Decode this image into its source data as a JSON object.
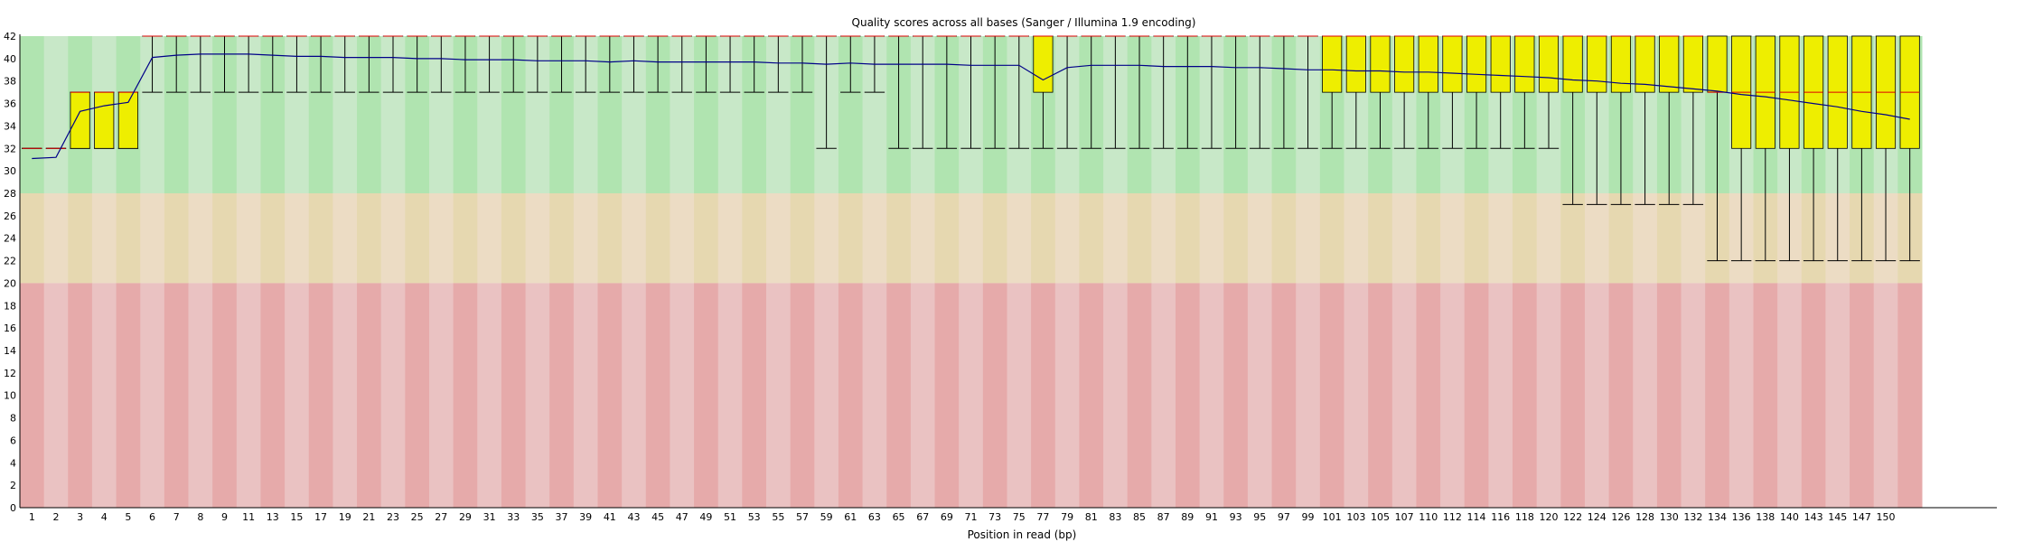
{
  "chart_data": {
    "type": "box",
    "title": "Quality scores across all bases (Sanger / Illumina 1.9 encoding)",
    "xlabel": "Position in read (bp)",
    "ylabel": "",
    "ylim": [
      0,
      42
    ],
    "yticks": [
      0,
      2,
      4,
      6,
      8,
      10,
      12,
      14,
      16,
      18,
      20,
      22,
      24,
      26,
      28,
      30,
      32,
      34,
      36,
      38,
      40,
      42
    ],
    "zones": [
      {
        "name": "good",
        "from": 28,
        "to": 42,
        "colors": [
          "#b0e4b0",
          "#c8e8c8"
        ]
      },
      {
        "name": "reasonable",
        "from": 20,
        "to": 28,
        "colors": [
          "#e6d8b0",
          "#ecdcc4"
        ]
      },
      {
        "name": "poor",
        "from": 0,
        "to": 20,
        "colors": [
          "#e6aaaa",
          "#eac2c2"
        ]
      }
    ],
    "colors": {
      "box": "#eeee00",
      "mean": "#000088",
      "median": "#dd0000",
      "whisker": "#000000"
    },
    "xtick_labels": [
      "1",
      "2",
      "3",
      "4",
      "5",
      "6",
      "7",
      "8",
      "9",
      "11",
      "13",
      "15",
      "17",
      "19",
      "21",
      "23",
      "25",
      "27",
      "29",
      "31",
      "33",
      "35",
      "37",
      "39",
      "41",
      "43",
      "45",
      "47",
      "49",
      "51",
      "53",
      "55",
      "57",
      "59",
      "61",
      "63",
      "65",
      "67",
      "69",
      "71",
      "73",
      "75",
      "77",
      "79",
      "81",
      "83",
      "85",
      "87",
      "89",
      "91",
      "93",
      "95",
      "97",
      "99",
      "101",
      "103",
      "105",
      "107",
      "110",
      "112",
      "114",
      "116",
      "118",
      "120",
      "122",
      "124",
      "126",
      "128",
      "130",
      "132",
      "134",
      "136",
      "138",
      "140",
      "143",
      "145",
      "147",
      "150"
    ],
    "groups": [
      {
        "range": "1",
        "box": [
          32,
          32,
          32
        ],
        "whisker": [
          32,
          32
        ],
        "mean": 31.1
      },
      {
        "range": "2",
        "box": [
          32,
          32,
          32
        ],
        "whisker": [
          32,
          32
        ],
        "mean": 31.2
      },
      {
        "range": "3",
        "box": [
          32,
          37,
          37
        ],
        "whisker": [
          32,
          37
        ],
        "mean": 35.3
      },
      {
        "range": "4",
        "box": [
          32,
          37,
          37
        ],
        "whisker": [
          32,
          37
        ],
        "mean": 35.8
      },
      {
        "range": "5",
        "box": [
          32,
          37,
          37
        ],
        "whisker": [
          32,
          37
        ],
        "mean": 36.1
      },
      {
        "range": "6",
        "box": [
          42,
          42,
          42
        ],
        "whisker": [
          37,
          42
        ],
        "mean": 40.1
      },
      {
        "range": "7",
        "box": [
          42,
          42,
          42
        ],
        "whisker": [
          37,
          42
        ],
        "mean": 40.3
      },
      {
        "range": "8",
        "box": [
          42,
          42,
          42
        ],
        "whisker": [
          37,
          42
        ],
        "mean": 40.4
      },
      {
        "range": "9",
        "box": [
          42,
          42,
          42
        ],
        "whisker": [
          37,
          42
        ],
        "mean": 40.4
      },
      {
        "range": "10-11",
        "box": [
          42,
          42,
          42
        ],
        "whisker": [
          37,
          42
        ],
        "mean": 40.4
      },
      {
        "range": "12-13",
        "box": [
          42,
          42,
          42
        ],
        "whisker": [
          37,
          42
        ],
        "mean": 40.3
      },
      {
        "range": "14-15",
        "box": [
          42,
          42,
          42
        ],
        "whisker": [
          37,
          42
        ],
        "mean": 40.2
      },
      {
        "range": "16-17",
        "box": [
          42,
          42,
          42
        ],
        "whisker": [
          37,
          42
        ],
        "mean": 40.2
      },
      {
        "range": "18-19",
        "box": [
          42,
          42,
          42
        ],
        "whisker": [
          37,
          42
        ],
        "mean": 40.1
      },
      {
        "range": "20-21",
        "box": [
          42,
          42,
          42
        ],
        "whisker": [
          37,
          42
        ],
        "mean": 40.1
      },
      {
        "range": "22-23",
        "box": [
          42,
          42,
          42
        ],
        "whisker": [
          37,
          42
        ],
        "mean": 40.1
      },
      {
        "range": "24-25",
        "box": [
          42,
          42,
          42
        ],
        "whisker": [
          37,
          42
        ],
        "mean": 40.0
      },
      {
        "range": "26-27",
        "box": [
          42,
          42,
          42
        ],
        "whisker": [
          37,
          42
        ],
        "mean": 40.0
      },
      {
        "range": "28-29",
        "box": [
          42,
          42,
          42
        ],
        "whisker": [
          37,
          42
        ],
        "mean": 39.9
      },
      {
        "range": "30-31",
        "box": [
          42,
          42,
          42
        ],
        "whisker": [
          37,
          42
        ],
        "mean": 39.9
      },
      {
        "range": "32-33",
        "box": [
          42,
          42,
          42
        ],
        "whisker": [
          37,
          42
        ],
        "mean": 39.9
      },
      {
        "range": "34-35",
        "box": [
          42,
          42,
          42
        ],
        "whisker": [
          37,
          42
        ],
        "mean": 39.8
      },
      {
        "range": "36-37",
        "box": [
          42,
          42,
          42
        ],
        "whisker": [
          37,
          42
        ],
        "mean": 39.8
      },
      {
        "range": "38-39",
        "box": [
          42,
          42,
          42
        ],
        "whisker": [
          37,
          42
        ],
        "mean": 39.8
      },
      {
        "range": "40-41",
        "box": [
          42,
          42,
          42
        ],
        "whisker": [
          37,
          42
        ],
        "mean": 39.7
      },
      {
        "range": "42-43",
        "box": [
          42,
          42,
          42
        ],
        "whisker": [
          37,
          42
        ],
        "mean": 39.8
      },
      {
        "range": "44-45",
        "box": [
          42,
          42,
          42
        ],
        "whisker": [
          37,
          42
        ],
        "mean": 39.7
      },
      {
        "range": "46-47",
        "box": [
          42,
          42,
          42
        ],
        "whisker": [
          37,
          42
        ],
        "mean": 39.7
      },
      {
        "range": "48-49",
        "box": [
          42,
          42,
          42
        ],
        "whisker": [
          37,
          42
        ],
        "mean": 39.7
      },
      {
        "range": "50-51",
        "box": [
          42,
          42,
          42
        ],
        "whisker": [
          37,
          42
        ],
        "mean": 39.7
      },
      {
        "range": "52-53",
        "box": [
          42,
          42,
          42
        ],
        "whisker": [
          37,
          42
        ],
        "mean": 39.7
      },
      {
        "range": "54-55",
        "box": [
          42,
          42,
          42
        ],
        "whisker": [
          37,
          42
        ],
        "mean": 39.6
      },
      {
        "range": "56-57",
        "box": [
          42,
          42,
          42
        ],
        "whisker": [
          37,
          42
        ],
        "mean": 39.6
      },
      {
        "range": "58-59",
        "box": [
          42,
          42,
          42
        ],
        "whisker": [
          32,
          42
        ],
        "mean": 39.5
      },
      {
        "range": "60-61",
        "box": [
          42,
          42,
          42
        ],
        "whisker": [
          37,
          42
        ],
        "mean": 39.6
      },
      {
        "range": "62-63",
        "box": [
          42,
          42,
          42
        ],
        "whisker": [
          37,
          42
        ],
        "mean": 39.5
      },
      {
        "range": "64-65",
        "box": [
          42,
          42,
          42
        ],
        "whisker": [
          32,
          42
        ],
        "mean": 39.5
      },
      {
        "range": "66-67",
        "box": [
          42,
          42,
          42
        ],
        "whisker": [
          32,
          42
        ],
        "mean": 39.5
      },
      {
        "range": "68-69",
        "box": [
          42,
          42,
          42
        ],
        "whisker": [
          32,
          42
        ],
        "mean": 39.5
      },
      {
        "range": "70-71",
        "box": [
          42,
          42,
          42
        ],
        "whisker": [
          32,
          42
        ],
        "mean": 39.4
      },
      {
        "range": "72-73",
        "box": [
          42,
          42,
          42
        ],
        "whisker": [
          32,
          42
        ],
        "mean": 39.4
      },
      {
        "range": "74-75",
        "box": [
          42,
          42,
          42
        ],
        "whisker": [
          32,
          42
        ],
        "mean": 39.4
      },
      {
        "range": "76-77",
        "box": [
          37,
          42,
          42
        ],
        "whisker": [
          32,
          42
        ],
        "mean": 38.1
      },
      {
        "range": "78-79",
        "box": [
          42,
          42,
          42
        ],
        "whisker": [
          32,
          42
        ],
        "mean": 39.2
      },
      {
        "range": "80-81",
        "box": [
          42,
          42,
          42
        ],
        "whisker": [
          32,
          42
        ],
        "mean": 39.4
      },
      {
        "range": "82-83",
        "box": [
          42,
          42,
          42
        ],
        "whisker": [
          32,
          42
        ],
        "mean": 39.4
      },
      {
        "range": "84-85",
        "box": [
          42,
          42,
          42
        ],
        "whisker": [
          32,
          42
        ],
        "mean": 39.4
      },
      {
        "range": "86-87",
        "box": [
          42,
          42,
          42
        ],
        "whisker": [
          32,
          42
        ],
        "mean": 39.3
      },
      {
        "range": "88-89",
        "box": [
          42,
          42,
          42
        ],
        "whisker": [
          32,
          42
        ],
        "mean": 39.3
      },
      {
        "range": "90-91",
        "box": [
          42,
          42,
          42
        ],
        "whisker": [
          32,
          42
        ],
        "mean": 39.3
      },
      {
        "range": "92-93",
        "box": [
          42,
          42,
          42
        ],
        "whisker": [
          32,
          42
        ],
        "mean": 39.2
      },
      {
        "range": "94-95",
        "box": [
          42,
          42,
          42
        ],
        "whisker": [
          32,
          42
        ],
        "mean": 39.2
      },
      {
        "range": "96-97",
        "box": [
          42,
          42,
          42
        ],
        "whisker": [
          32,
          42
        ],
        "mean": 39.1
      },
      {
        "range": "98-99",
        "box": [
          42,
          42,
          42
        ],
        "whisker": [
          32,
          42
        ],
        "mean": 39.0
      },
      {
        "range": "100-101",
        "box": [
          37,
          42,
          42
        ],
        "whisker": [
          32,
          42
        ],
        "mean": 39.0
      },
      {
        "range": "102-103",
        "box": [
          37,
          42,
          42
        ],
        "whisker": [
          32,
          42
        ],
        "mean": 38.9
      },
      {
        "range": "104-105",
        "box": [
          37,
          42,
          42
        ],
        "whisker": [
          32,
          42
        ],
        "mean": 38.9
      },
      {
        "range": "106-107",
        "box": [
          37,
          42,
          42
        ],
        "whisker": [
          32,
          42
        ],
        "mean": 38.8
      },
      {
        "range": "108-109",
        "box": [
          37,
          42,
          42
        ],
        "whisker": [
          32,
          42
        ],
        "mean": 38.8
      },
      {
        "range": "110-111",
        "box": [
          37,
          42,
          42
        ],
        "whisker": [
          32,
          42
        ],
        "mean": 38.7
      },
      {
        "range": "112-113",
        "box": [
          37,
          42,
          42
        ],
        "whisker": [
          32,
          42
        ],
        "mean": 38.6
      },
      {
        "range": "114-115",
        "box": [
          37,
          42,
          42
        ],
        "whisker": [
          32,
          42
        ],
        "mean": 38.5
      },
      {
        "range": "116-117",
        "box": [
          37,
          42,
          42
        ],
        "whisker": [
          32,
          42
        ],
        "mean": 38.4
      },
      {
        "range": "118-119",
        "box": [
          37,
          42,
          42
        ],
        "whisker": [
          32,
          42
        ],
        "mean": 38.3
      },
      {
        "range": "120-121",
        "box": [
          37,
          42,
          42
        ],
        "whisker": [
          27,
          42
        ],
        "mean": 38.1
      },
      {
        "range": "122-123",
        "box": [
          37,
          42,
          42
        ],
        "whisker": [
          27,
          42
        ],
        "mean": 38.0
      },
      {
        "range": "124-125",
        "box": [
          37,
          42,
          42
        ],
        "whisker": [
          27,
          42
        ],
        "mean": 37.8
      },
      {
        "range": "126-127",
        "box": [
          37,
          42,
          42
        ],
        "whisker": [
          27,
          42
        ],
        "mean": 37.7
      },
      {
        "range": "128-129",
        "box": [
          37,
          42,
          42
        ],
        "whisker": [
          27,
          42
        ],
        "mean": 37.5
      },
      {
        "range": "130-131",
        "box": [
          37,
          42,
          42
        ],
        "whisker": [
          27,
          42
        ],
        "mean": 37.3
      },
      {
        "range": "132-133",
        "box": [
          37,
          37,
          42
        ],
        "whisker": [
          22,
          42
        ],
        "mean": 37.1
      },
      {
        "range": "134-135",
        "box": [
          32,
          37,
          42
        ],
        "whisker": [
          22,
          42
        ],
        "mean": 36.8
      },
      {
        "range": "136-137",
        "box": [
          32,
          37,
          42
        ],
        "whisker": [
          22,
          42
        ],
        "mean": 36.6
      },
      {
        "range": "138-139",
        "box": [
          32,
          37,
          42
        ],
        "whisker": [
          22,
          42
        ],
        "mean": 36.3
      },
      {
        "range": "140-141",
        "box": [
          32,
          37,
          42
        ],
        "whisker": [
          22,
          42
        ],
        "mean": 36.0
      },
      {
        "range": "142-143",
        "box": [
          32,
          37,
          42
        ],
        "whisker": [
          22,
          42
        ],
        "mean": 35.7
      },
      {
        "range": "144-145",
        "box": [
          32,
          37,
          42
        ],
        "whisker": [
          22,
          42
        ],
        "mean": 35.3
      },
      {
        "range": "146-147",
        "box": [
          32,
          37,
          42
        ],
        "whisker": [
          22,
          42
        ],
        "mean": 35.0
      },
      {
        "range": "148-150",
        "box": [
          32,
          37,
          42
        ],
        "whisker": [
          22,
          42
        ],
        "mean": 34.6
      }
    ]
  }
}
